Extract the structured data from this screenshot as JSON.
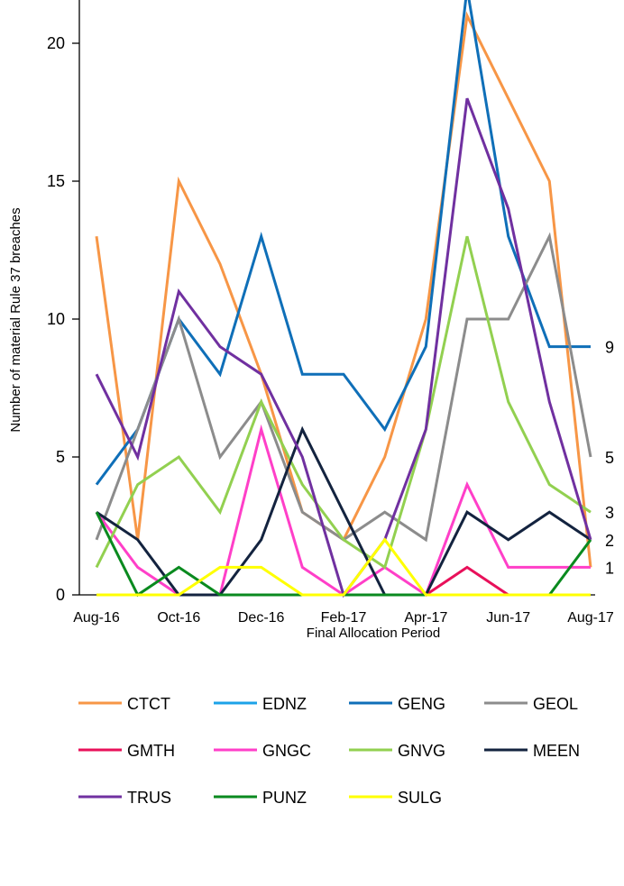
{
  "chart_data": {
    "type": "line",
    "xlabel": "Final Allocation Period",
    "ylabel": "Number of material  Rule 37 breaches",
    "ylim": [
      0,
      23
    ],
    "yticks": [
      0,
      5,
      10,
      15,
      20
    ],
    "x": [
      "Aug-16",
      "Sep-16",
      "Oct-16",
      "Nov-16",
      "Dec-16",
      "Jan-17",
      "Feb-17",
      "Mar-17",
      "Apr-17",
      "May-17",
      "Jun-17",
      "Jul-17",
      "Aug-17"
    ],
    "xtick_labels": [
      "Aug-16",
      "Oct-16",
      "Dec-16",
      "Feb-17",
      "Apr-17",
      "Jun-17",
      "Aug-17"
    ],
    "xtick_indices": [
      0,
      2,
      4,
      6,
      8,
      10,
      12
    ],
    "end_labels": [
      {
        "text": "9",
        "value": 9
      },
      {
        "text": "5",
        "value": 5
      },
      {
        "text": "3",
        "value": 3
      },
      {
        "text": "2",
        "value": 2
      },
      {
        "text": "1",
        "value": 1
      }
    ],
    "legend_position": "bottom",
    "series": [
      {
        "name": "CTCT",
        "color": "#F79646",
        "values": [
          13,
          2,
          15,
          12,
          8,
          3,
          2,
          5,
          10,
          21,
          18,
          15,
          1
        ]
      },
      {
        "name": "EDNZ",
        "color": "#1CA3E8",
        "values": [
          0,
          0,
          0,
          0,
          0,
          0,
          0,
          0,
          0,
          0,
          0,
          0,
          0
        ]
      },
      {
        "name": "GENG",
        "color": "#0F6FB8",
        "values": [
          4,
          6,
          10,
          8,
          13,
          8,
          8,
          6,
          9,
          22,
          13,
          9,
          9
        ]
      },
      {
        "name": "GEOL",
        "color": "#8C8C8C",
        "values": [
          2,
          6,
          10,
          5,
          7,
          3,
          2,
          3,
          2,
          10,
          10,
          13,
          5
        ]
      },
      {
        "name": "GMTH",
        "color": "#E8105A",
        "values": [
          0,
          0,
          0,
          0,
          0,
          0,
          0,
          0,
          0,
          1,
          0,
          0,
          0
        ]
      },
      {
        "name": "GNGC",
        "color": "#FF3FC8",
        "values": [
          3,
          1,
          0,
          0,
          6,
          1,
          0,
          1,
          0,
          4,
          1,
          1,
          1
        ]
      },
      {
        "name": "GNVG",
        "color": "#92D050",
        "values": [
          1,
          4,
          5,
          3,
          7,
          4,
          2,
          1,
          6,
          13,
          7,
          4,
          3
        ]
      },
      {
        "name": "MEEN",
        "color": "#13233F",
        "values": [
          3,
          2,
          0,
          0,
          2,
          6,
          3,
          0,
          0,
          3,
          2,
          3,
          2
        ]
      },
      {
        "name": "TRUS",
        "color": "#7030A0",
        "values": [
          8,
          5,
          11,
          9,
          8,
          5,
          0,
          2,
          6,
          18,
          14,
          7,
          2
        ]
      },
      {
        "name": "PUNZ",
        "color": "#0A8A1F",
        "values": [
          3,
          0,
          1,
          0,
          0,
          0,
          0,
          0,
          0,
          0,
          0,
          0,
          2
        ]
      },
      {
        "name": "SULG",
        "color": "#FFFF00",
        "values": [
          0,
          0,
          0,
          1,
          1,
          0,
          0,
          2,
          0,
          0,
          0,
          0,
          0
        ]
      }
    ]
  }
}
